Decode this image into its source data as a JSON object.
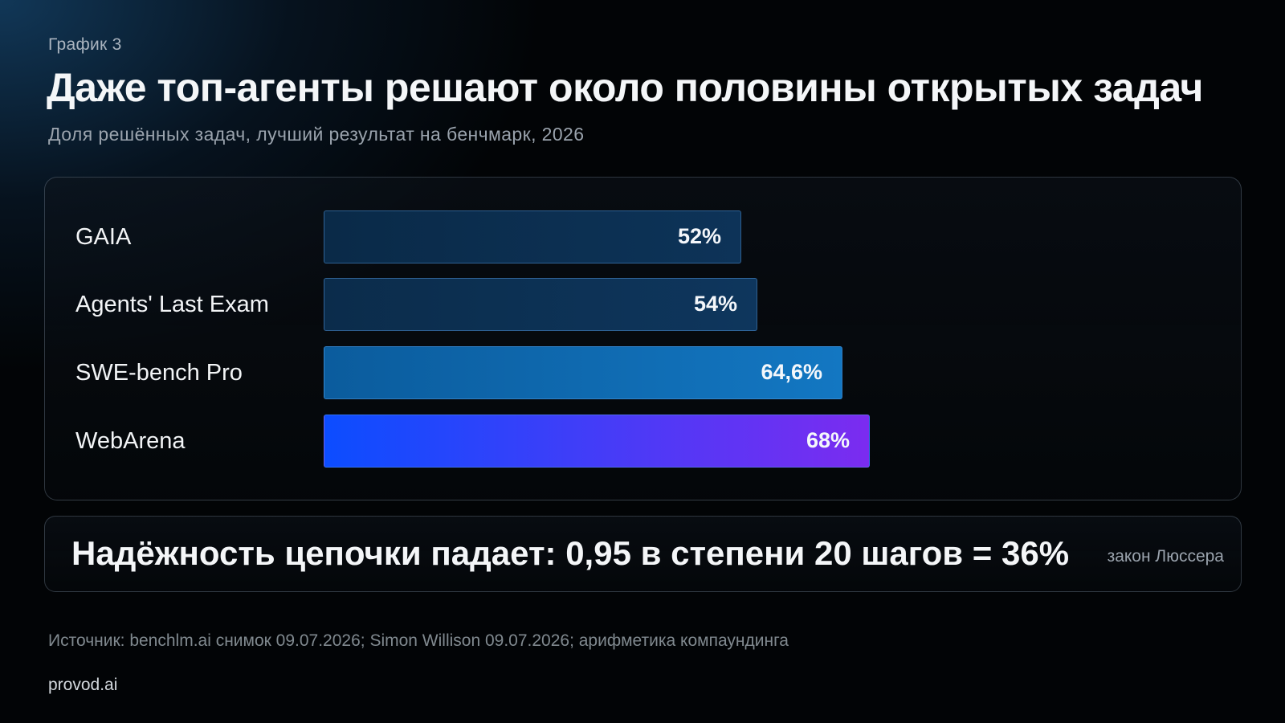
{
  "header": {
    "kicker": "График 3",
    "title": "Даже топ-агенты решают около половины открытых задач",
    "subtitle": "Доля решённых задач, лучший результат на бенчмарк, 2026"
  },
  "chart_data": {
    "type": "bar",
    "orientation": "horizontal",
    "categories": [
      "GAIA",
      "Agents' Last Exam",
      "SWE-bench Pro",
      "WebArena"
    ],
    "values": [
      52,
      54,
      64.6,
      68
    ],
    "value_labels": [
      "52%",
      "54%",
      "64,6%",
      "68%"
    ],
    "xlim": [
      0,
      100
    ],
    "unit": "%",
    "grid": false,
    "bar_colors": [
      [
        "#0a2a48",
        "#0d3358"
      ],
      [
        "#0b2c4b",
        "#0e365d"
      ],
      [
        "#0b5c9d",
        "#1377c2"
      ],
      [
        "#0c4dff",
        "#7b2cf0"
      ]
    ]
  },
  "callout": {
    "text": "Надёжность цепочки падает: 0,95 в степени 20 шагов = 36%",
    "note": "закон Люссера"
  },
  "footer": {
    "source": "Источник: benchlm.ai снимок 09.07.2026; Simon Willison 09.07.2026; арифметика компаундинга",
    "brand": "provod.ai"
  }
}
